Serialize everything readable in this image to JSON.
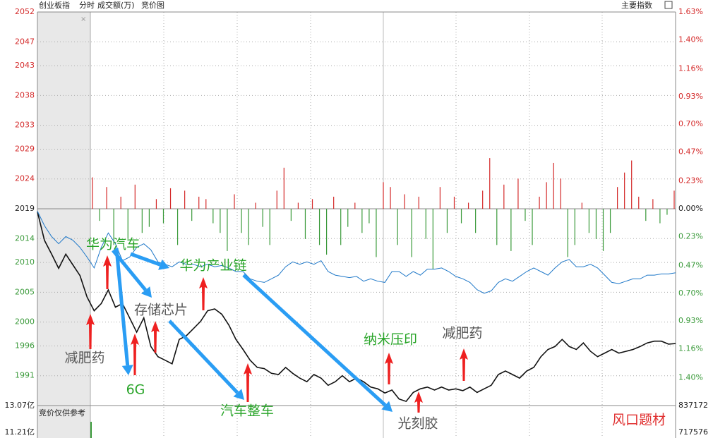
{
  "chart_data": {
    "type": "line",
    "title": "创业板指",
    "tabs": [
      "分时",
      "成交额(万)",
      "竞价图"
    ],
    "menu": "主要指数",
    "ylim": [
      1986,
      2052
    ],
    "yticks": [
      2052,
      2047,
      2043,
      2038,
      2033,
      2029,
      2024,
      2019,
      2014,
      2010,
      2005,
      2000,
      1996,
      1991
    ],
    "y2lim": [
      -1.63,
      1.63
    ],
    "y2ticks": [
      {
        "value": 1.63,
        "label": "1.63%"
      },
      {
        "value": 1.4,
        "label": "1.40%"
      },
      {
        "value": 1.16,
        "label": "1.16%"
      },
      {
        "value": 0.93,
        "label": "0.93%"
      },
      {
        "value": 0.7,
        "label": "0.70%"
      },
      {
        "value": 0.47,
        "label": "0.47%"
      },
      {
        "value": 0.23,
        "label": "0.23%"
      },
      {
        "value": 0,
        "label": "0.00%"
      },
      {
        "value": -0.23,
        "label": "0.23%"
      },
      {
        "value": -0.47,
        "label": "0.47%"
      },
      {
        "value": -0.7,
        "label": "0.70%"
      },
      {
        "value": -0.93,
        "label": "0.93%"
      },
      {
        "value": -1.16,
        "label": "1.16%"
      },
      {
        "value": -1.4,
        "label": "1.40%"
      }
    ],
    "grid": true,
    "up_color": "#d42a2a",
    "down_color": "#3a9a3a",
    "series": [
      {
        "color": "#111111",
        "values": [
          2018.5,
          2013.7,
          2011.4,
          2009.0,
          2011.4,
          2009.6,
          2007.8,
          2004.2,
          2001.9,
          2003.1,
          2005.4,
          2002.5,
          2003.1,
          2000.7,
          1998.3,
          2000.7,
          1995.9,
          1994.2,
          1993.6,
          1993.0,
          1997.1,
          1997.7,
          1998.9,
          2000.1,
          2001.9,
          2002.2,
          2001.3,
          1999.5,
          1997.1,
          1995.4,
          1993.6,
          1992.4,
          1992.2,
          1991.4,
          1991.2,
          1992.4,
          1991.4,
          1990.6,
          1990.0,
          1991.2,
          1990.6,
          1989.4,
          1990.0,
          1991.0,
          1990.0,
          1990.6,
          1990.0,
          1989.1,
          1988.8,
          1988.1,
          1988.6,
          1987.1,
          1986.7,
          1988.2,
          1988.8,
          1989.1,
          1988.6,
          1989.1,
          1988.6,
          1988.8,
          1988.5,
          1989.1,
          1988.2,
          1988.8,
          1989.4,
          1991.2,
          1991.8,
          1991.2,
          1990.6,
          1991.8,
          1992.4,
          1994.2,
          1995.4,
          1995.9,
          1997.1,
          1995.9,
          1995.4,
          1996.5,
          1995.1,
          1994.2,
          1994.8,
          1995.4,
          1994.8,
          1995.1,
          1995.4,
          1995.9,
          1996.5,
          1996.8,
          1996.8,
          1996.3,
          1996.4
        ]
      },
      {
        "color": "#1f78c8",
        "axis": "y2",
        "values": [
          -0.02,
          -0.14,
          -0.23,
          -0.29,
          -0.23,
          -0.26,
          -0.32,
          -0.4,
          -0.49,
          -0.32,
          -0.2,
          -0.29,
          -0.43,
          -0.4,
          -0.32,
          -0.29,
          -0.34,
          -0.44,
          -0.46,
          -0.48,
          -0.44,
          -0.46,
          -0.46,
          -0.48,
          -0.46,
          -0.48,
          -0.47,
          -0.49,
          -0.52,
          -0.52,
          -0.58,
          -0.6,
          -0.61,
          -0.58,
          -0.55,
          -0.48,
          -0.44,
          -0.46,
          -0.44,
          -0.46,
          -0.43,
          -0.52,
          -0.55,
          -0.56,
          -0.57,
          -0.56,
          -0.6,
          -0.58,
          -0.6,
          -0.61,
          -0.52,
          -0.52,
          -0.56,
          -0.52,
          -0.55,
          -0.5,
          -0.5,
          -0.49,
          -0.52,
          -0.56,
          -0.58,
          -0.61,
          -0.67,
          -0.7,
          -0.68,
          -0.61,
          -0.58,
          -0.6,
          -0.56,
          -0.52,
          -0.49,
          -0.52,
          -0.55,
          -0.49,
          -0.44,
          -0.42,
          -0.48,
          -0.48,
          -0.46,
          -0.49,
          -0.55,
          -0.61,
          -0.62,
          -0.6,
          -0.58,
          -0.58,
          -0.55,
          -0.55,
          -0.54,
          -0.54,
          -0.53
        ]
      }
    ],
    "bars": {
      "axis": "y2",
      "values": [
        0.26,
        -0.1,
        0.18,
        -0.3,
        0.1,
        -0.25,
        0.2,
        -0.2,
        -0.15,
        0.08,
        -0.12,
        0.17,
        -0.3,
        0.15,
        -0.1,
        0.1,
        0.08,
        -0.12,
        -0.2,
        -0.35,
        0.12,
        -0.2,
        -0.3,
        0.05,
        -0.15,
        -0.3,
        0.15,
        0.34,
        -0.1,
        0.05,
        -0.25,
        0.08,
        -0.3,
        -0.38,
        0.1,
        -0.3,
        -0.15,
        0.05,
        -0.2,
        -0.12,
        -0.4,
        0.22,
        0.18,
        -0.3,
        0.12,
        -0.4,
        0.1,
        -0.25,
        -0.5,
        0.18,
        -0.2,
        0.1,
        -0.12,
        0.05,
        -0.2,
        0.15,
        0.42,
        -0.3,
        0.2,
        -0.35,
        0.25,
        -0.1,
        -0.3,
        0.1,
        0.22,
        0.38,
        0.25,
        -0.4,
        -0.3,
        0.05,
        -0.2,
        -0.25,
        -0.35,
        -0.2,
        0.18,
        0.3,
        0.4,
        0.1,
        -0.1,
        0.08,
        -0.12,
        -0.05,
        0.15
      ]
    },
    "subpanel": {
      "note": "竞价仅供参考",
      "ylim": [
        10.82,
        13.07
      ],
      "yticks": [
        {
          "value": 13.07,
          "label": "13.07亿"
        },
        {
          "value": 11.21,
          "label": "11.21亿"
        }
      ],
      "y2lim": [
        692400,
        837172
      ],
      "y2ticks": [
        837172,
        717576
      ]
    },
    "annotations": [
      {
        "text": "华为汽车",
        "color": "#2aa52a"
      },
      {
        "text": "华为产业链",
        "color": "#2aa52a"
      },
      {
        "text": "存储芯片",
        "color": "#555555"
      },
      {
        "text": "减肥药",
        "color": "#555555"
      },
      {
        "text": "6G",
        "color": "#2aa52a"
      },
      {
        "text": "汽车整车",
        "color": "#2aa52a"
      },
      {
        "text": "纳米压印",
        "color": "#2aa52a"
      },
      {
        "text": "光刻胶",
        "color": "#555555"
      },
      {
        "text": "减肥药",
        "color": "#555555"
      },
      {
        "text": "风口题材",
        "color": "#e03030"
      }
    ]
  }
}
